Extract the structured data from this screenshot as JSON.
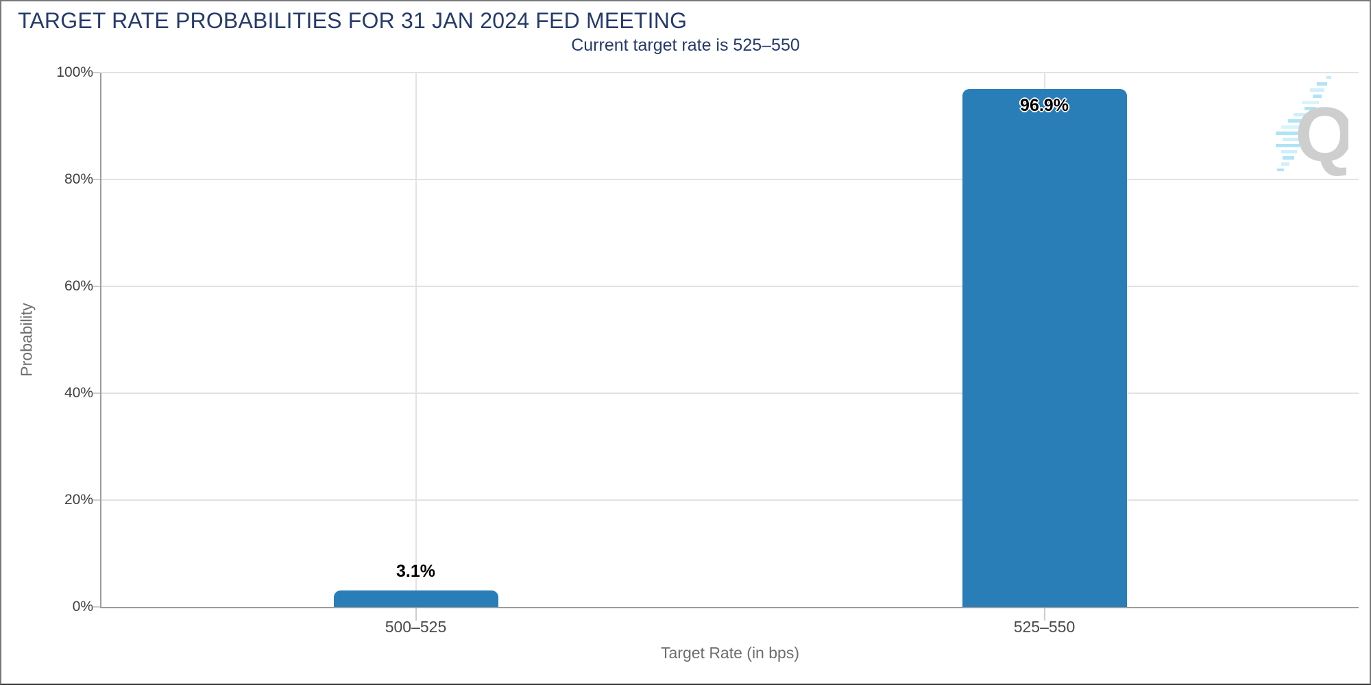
{
  "chart_data": {
    "type": "bar",
    "title": "TARGET RATE PROBABILITIES FOR 31 JAN 2024 FED MEETING",
    "subtitle": "Current target rate is 525–550",
    "categories": [
      "500–525",
      "525–550"
    ],
    "values": [
      3.1,
      96.9
    ],
    "data_labels": [
      "3.1%",
      "96.9%"
    ],
    "xlabel": "Target Rate (in bps)",
    "ylabel": "Probability",
    "ylim": [
      0,
      100
    ],
    "yticks": [
      0,
      20,
      40,
      60,
      80,
      100
    ],
    "ytick_labels": [
      "0%",
      "20%",
      "40%",
      "60%",
      "80%",
      "100%"
    ],
    "grid": true,
    "legend": false,
    "bar_color": "#2a7eb8",
    "colors": {
      "title": "#263a6b",
      "subtitle": "#263a6b",
      "grid_line": "#e2e2e2",
      "axis_line": "#9c9c9c",
      "tick_mark": "#cccccc",
      "tick_label": "#404040",
      "axis_title": "#6e6e6e",
      "category_label": "#4a4a4a",
      "data_label": "#000000"
    }
  },
  "watermark": {
    "icon": "quikstrike-q-logo",
    "letter": "Q"
  }
}
